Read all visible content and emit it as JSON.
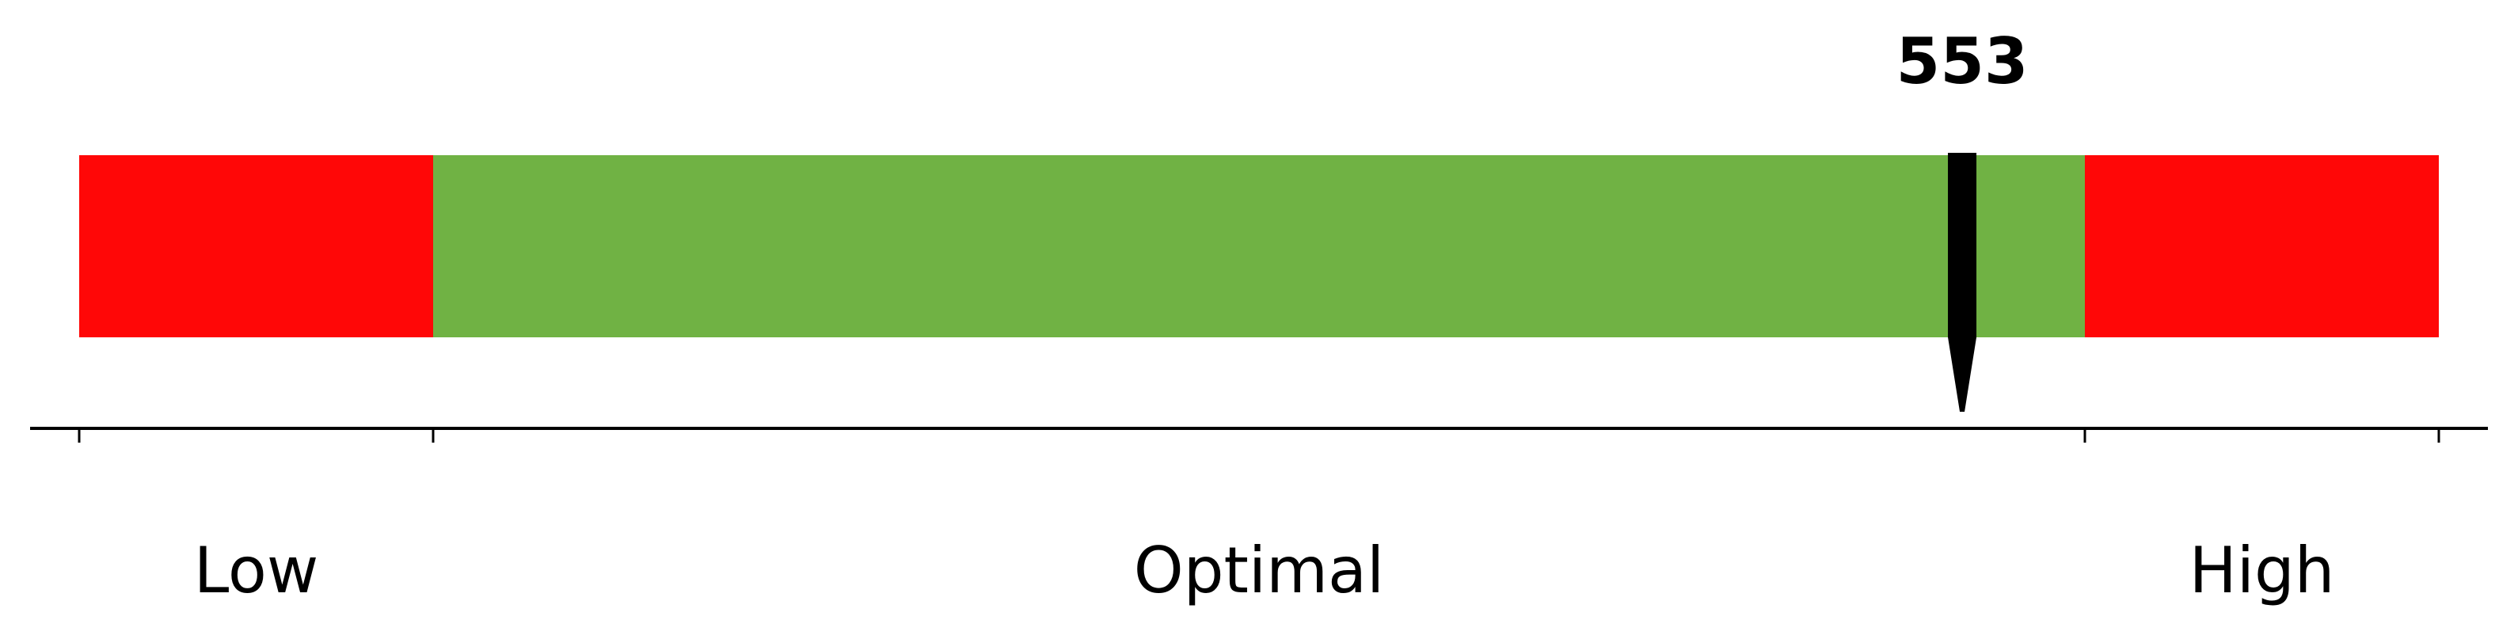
{
  "chart_data": {
    "type": "bar",
    "orientation": "horizontal-range-gauge",
    "value": 553,
    "value_label": "553",
    "ranges": [
      {
        "label": "Low",
        "color": "#ff0707",
        "from": 0,
        "to": 0.15
      },
      {
        "label": "Optimal",
        "color": "#70b244",
        "from": 0.15,
        "to": 0.85
      },
      {
        "label": "High",
        "color": "#ff0707",
        "from": 0.85,
        "to": 1.0
      }
    ],
    "marker_fraction": 0.798,
    "marker_color": "#000000",
    "axis_color": "#000000"
  }
}
